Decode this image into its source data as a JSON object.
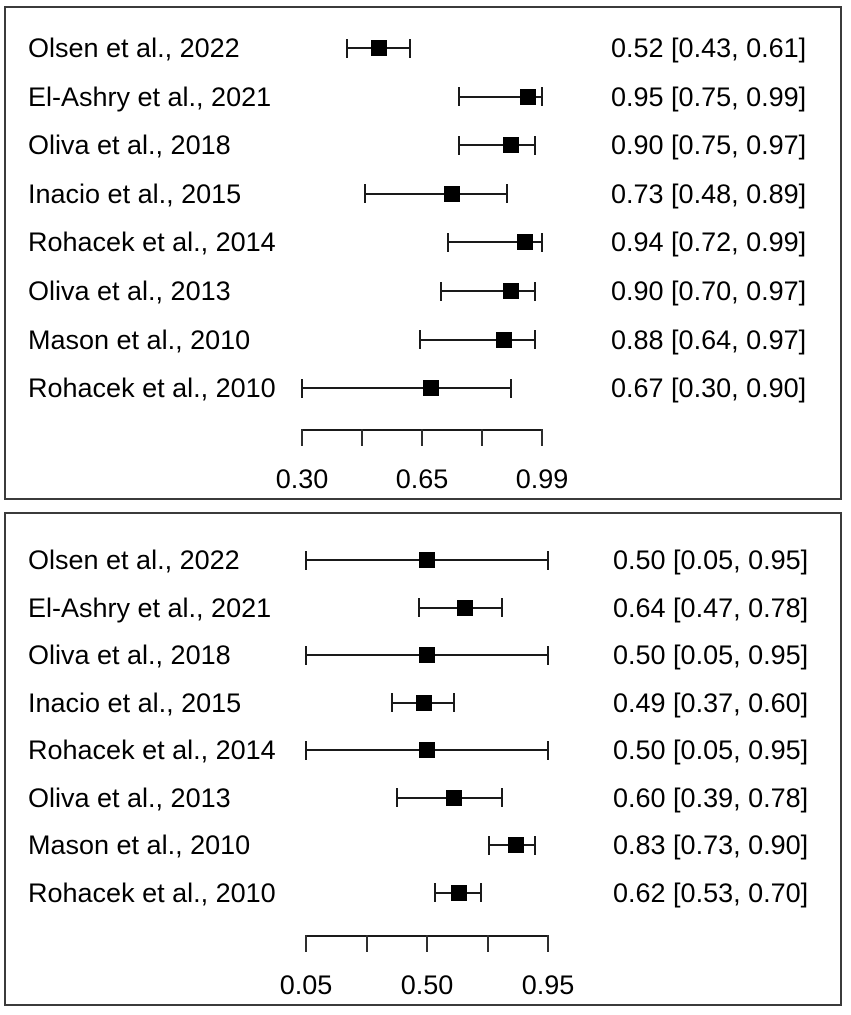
{
  "chart_data": [
    {
      "type": "forest",
      "panel": "top",
      "axis": {
        "min": 0.3,
        "max": 0.99,
        "n_ticks": 5,
        "tick_labels": [
          "0.30",
          "0.65",
          "0.99"
        ]
      },
      "studies": [
        {
          "label": "Olsen et al., 2022",
          "estimate": 0.52,
          "ci_low": 0.43,
          "ci_high": 0.61,
          "value_text": "0.52 [0.43, 0.61]"
        },
        {
          "label": "El-Ashry et al., 2021",
          "estimate": 0.95,
          "ci_low": 0.75,
          "ci_high": 0.99,
          "value_text": "0.95 [0.75, 0.99]"
        },
        {
          "label": "Oliva et al., 2018",
          "estimate": 0.9,
          "ci_low": 0.75,
          "ci_high": 0.97,
          "value_text": "0.90 [0.75, 0.97]"
        },
        {
          "label": "Inacio et al., 2015",
          "estimate": 0.73,
          "ci_low": 0.48,
          "ci_high": 0.89,
          "value_text": "0.73 [0.48, 0.89]"
        },
        {
          "label": "Rohacek et al., 2014",
          "estimate": 0.94,
          "ci_low": 0.72,
          "ci_high": 0.99,
          "value_text": "0.94 [0.72, 0.99]"
        },
        {
          "label": "Oliva et al., 2013",
          "estimate": 0.9,
          "ci_low": 0.7,
          "ci_high": 0.97,
          "value_text": "0.90 [0.70, 0.97]"
        },
        {
          "label": "Mason et al., 2010",
          "estimate": 0.88,
          "ci_low": 0.64,
          "ci_high": 0.97,
          "value_text": "0.88 [0.64, 0.97]"
        },
        {
          "label": "Rohacek et al., 2010",
          "estimate": 0.67,
          "ci_low": 0.3,
          "ci_high": 0.9,
          "value_text": "0.67 [0.30, 0.90]"
        }
      ]
    },
    {
      "type": "forest",
      "panel": "bottom",
      "axis": {
        "min": 0.05,
        "max": 0.95,
        "n_ticks": 5,
        "tick_labels": [
          "0.05",
          "0.50",
          "0.95"
        ]
      },
      "studies": [
        {
          "label": "Olsen et al., 2022",
          "estimate": 0.5,
          "ci_low": 0.05,
          "ci_high": 0.95,
          "value_text": "0.50 [0.05, 0.95]"
        },
        {
          "label": "El-Ashry et al., 2021",
          "estimate": 0.64,
          "ci_low": 0.47,
          "ci_high": 0.78,
          "value_text": "0.64 [0.47, 0.78]"
        },
        {
          "label": "Oliva et al., 2018",
          "estimate": 0.5,
          "ci_low": 0.05,
          "ci_high": 0.95,
          "value_text": "0.50 [0.05, 0.95]"
        },
        {
          "label": "Inacio et al., 2015",
          "estimate": 0.49,
          "ci_low": 0.37,
          "ci_high": 0.6,
          "value_text": "0.49 [0.37, 0.60]"
        },
        {
          "label": "Rohacek et al., 2014",
          "estimate": 0.5,
          "ci_low": 0.05,
          "ci_high": 0.95,
          "value_text": "0.50 [0.05, 0.95]"
        },
        {
          "label": "Oliva et al., 2013",
          "estimate": 0.6,
          "ci_low": 0.39,
          "ci_high": 0.78,
          "value_text": "0.60 [0.39, 0.78]"
        },
        {
          "label": "Mason et al., 2010",
          "estimate": 0.83,
          "ci_low": 0.73,
          "ci_high": 0.9,
          "value_text": "0.83 [0.73, 0.90]"
        },
        {
          "label": "Rohacek et al., 2010",
          "estimate": 0.62,
          "ci_low": 0.53,
          "ci_high": 0.7,
          "value_text": "0.62 [0.53, 0.70]"
        }
      ]
    }
  ],
  "colors": {
    "background": "#ffffff",
    "text": "#000000",
    "line": "#1a1a1a",
    "marker": "#000000",
    "panel_border": "#3b3b3b"
  }
}
